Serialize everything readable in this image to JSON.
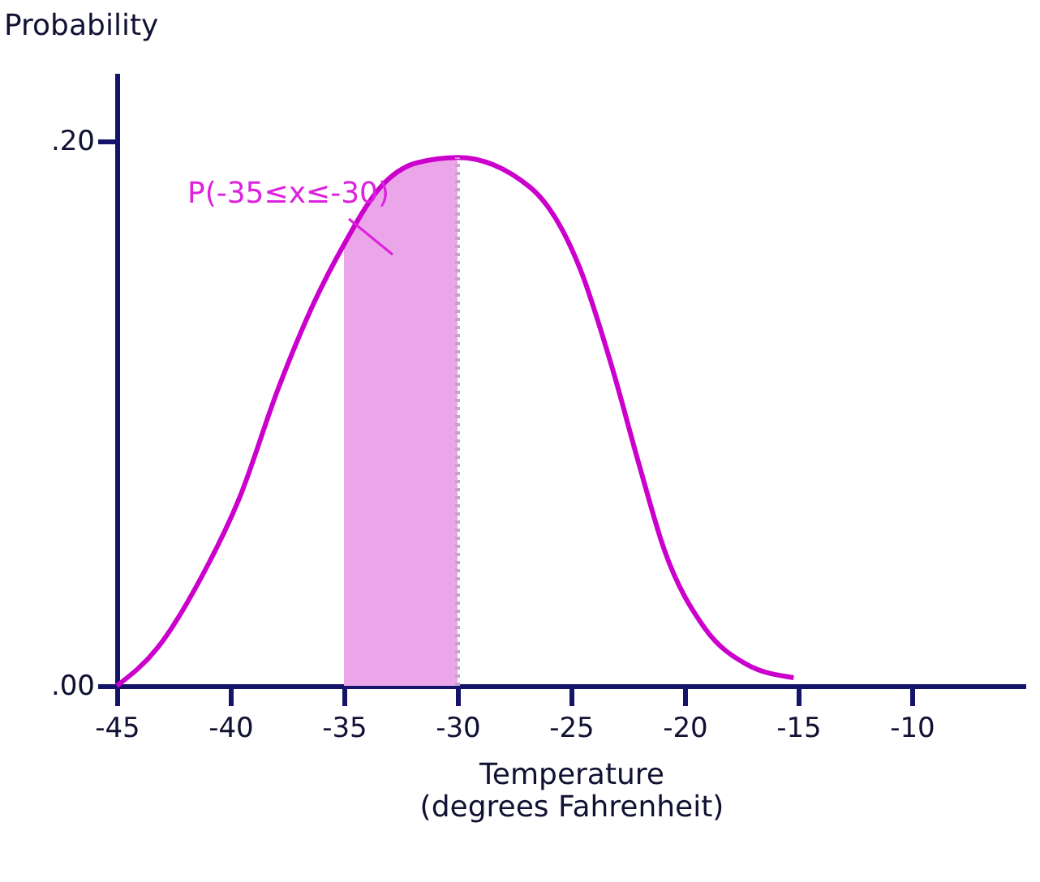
{
  "chart_data": {
    "type": "line",
    "xlabel": "Temperature\n(degrees Fahrenheit)",
    "ylabel": "Probability",
    "xlim": [
      -45,
      -5
    ],
    "xticks": [
      -45,
      -40,
      -35,
      -30,
      -25,
      -20,
      -15,
      -10
    ],
    "ylim": [
      0,
      0.225
    ],
    "yticks": [
      {
        "value": 0,
        "label": ".00"
      },
      {
        "value": 0.2,
        "label": ".20"
      }
    ],
    "grid": false,
    "marker": "none",
    "series": [
      {
        "type": "area",
        "color": "#eba6ea",
        "x": [
          -35,
          -33.4,
          -31.8,
          -30
        ],
        "values": [
          0.162,
          0.183,
          0.192,
          0.194
        ]
      },
      {
        "type": "line",
        "color": "#cc00cc",
        "line_style": "solid",
        "x": [
          -45,
          -43.2,
          -41.4,
          -39.6,
          -37.9,
          -36.3,
          -35,
          -33.4,
          -31.8,
          -30,
          -26.8,
          -24.6,
          -23.2,
          -22,
          -20.9,
          -19.1,
          -17.3,
          -15.2
        ],
        "values": [
          0.0,
          0.014,
          0.038,
          0.069,
          0.109,
          0.141,
          0.162,
          0.183,
          0.192,
          0.194,
          0.183,
          0.153,
          0.117,
          0.081,
          0.05,
          0.021,
          0.008,
          0.003
        ]
      },
      {
        "type": "line",
        "color": "#c7a3cc",
        "line_style": "dotted",
        "x": [
          -30,
          -30
        ],
        "values": [
          0,
          0.194
        ]
      }
    ],
    "annotations": [
      "P(-35≤x≤-30)"
    ]
  }
}
